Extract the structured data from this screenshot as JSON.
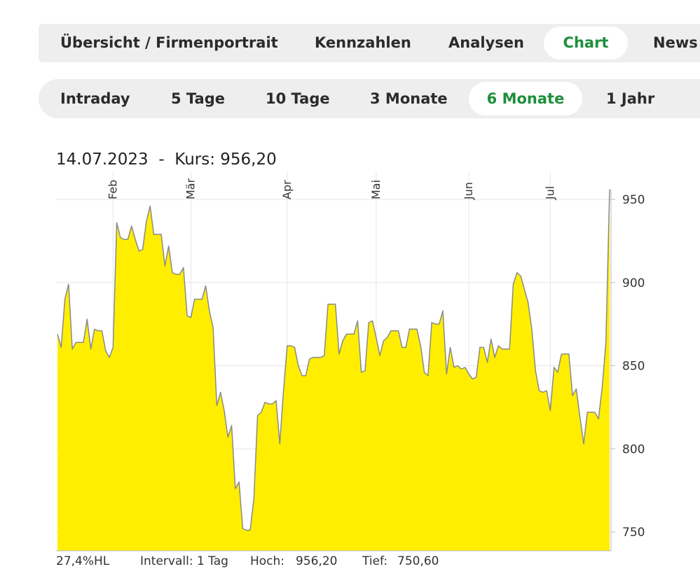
{
  "tabs": [
    {
      "label": "Übersicht / Firmenportrait",
      "active": false
    },
    {
      "label": "Kennzahlen",
      "active": false
    },
    {
      "label": "Analysen",
      "active": false
    },
    {
      "label": "Chart",
      "active": true
    },
    {
      "label": "News",
      "active": false
    }
  ],
  "ranges": [
    {
      "label": "Intraday",
      "active": false
    },
    {
      "label": "5 Tage",
      "active": false
    },
    {
      "label": "10 Tage",
      "active": false
    },
    {
      "label": "3 Monate",
      "active": false
    },
    {
      "label": "6 Monate",
      "active": true
    },
    {
      "label": "1 Jahr",
      "active": false
    }
  ],
  "quote": {
    "date": "14.07.2023",
    "separator": "-",
    "label": "Kurs:",
    "value": "956,20"
  },
  "footer": {
    "hl": "27,4%HL",
    "interval": "Intervall: 1 Tag",
    "high_label": "Hoch:",
    "high_value": "956,20",
    "low_label": "Tief:",
    "low_value": "750,60"
  },
  "colors": {
    "accent": "#1e8f3b",
    "fill": "#ffee00",
    "line": "#8a8a8a",
    "grid": "#e6e6e6",
    "tabbar_bg": "#eeeeee"
  },
  "chart_data": {
    "type": "area",
    "y_ticks": [
      "950",
      "900",
      "850",
      "800",
      "750"
    ],
    "y_tick_values": [
      950,
      900,
      850,
      800,
      750
    ],
    "ylim": [
      745,
      960
    ],
    "month_labels": [
      "Feb",
      "Mär",
      "Apr",
      "Mai",
      "Jun",
      "Jul"
    ],
    "month_start_index": [
      15,
      36,
      62,
      86,
      111,
      133
    ],
    "grid": true,
    "values": [
      869,
      861,
      890,
      899,
      860,
      864,
      864,
      864,
      878,
      860,
      872,
      871,
      871,
      859,
      855,
      861,
      936,
      927,
      926,
      926,
      934,
      926,
      919,
      920,
      937,
      946,
      929,
      929,
      929,
      910,
      922,
      906,
      905,
      905,
      909,
      880,
      879,
      890,
      890,
      890,
      898,
      883,
      873,
      826,
      834,
      823,
      807,
      814,
      776,
      780,
      752,
      751,
      751,
      770,
      820,
      822,
      828,
      827,
      827,
      829,
      803,
      835,
      862,
      862,
      861,
      850,
      844,
      844,
      854,
      855,
      855,
      855,
      856,
      887,
      887,
      887,
      857,
      865,
      869,
      869,
      869,
      877,
      846,
      847,
      876,
      877,
      867,
      856,
      865,
      867,
      871,
      871,
      871,
      861,
      861,
      872,
      872,
      872,
      862,
      846,
      844,
      876,
      875,
      875,
      883,
      845,
      861,
      849,
      850,
      848,
      849,
      845,
      842,
      843,
      861,
      861,
      852,
      866,
      855,
      862,
      860,
      860,
      860,
      899,
      906,
      904,
      896,
      888,
      872,
      847,
      835,
      834,
      835,
      823,
      849,
      846,
      857,
      857,
      857,
      832,
      836,
      819,
      803,
      822,
      822,
      822,
      818,
      837,
      864,
      956
    ]
  }
}
